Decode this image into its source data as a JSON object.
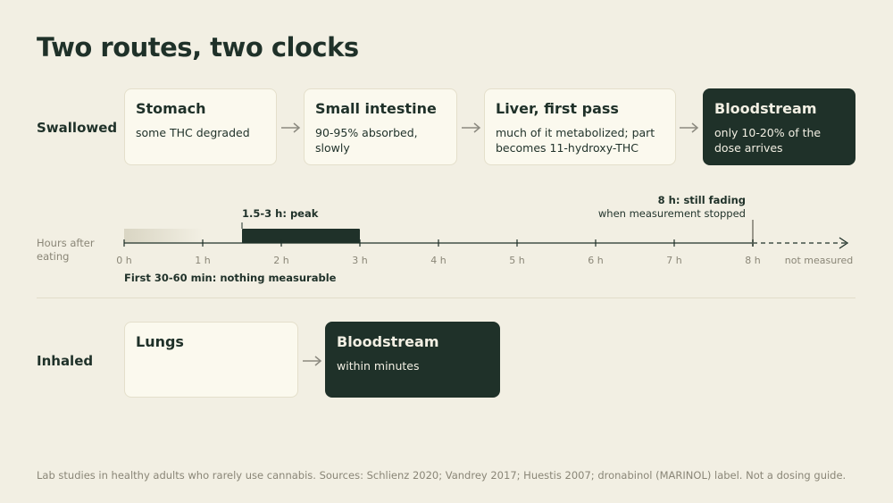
{
  "title": "Two routes, two clocks",
  "colors": {
    "background": "#f2efe3",
    "card": "#fbf9ee",
    "card_border": "#e4dfcb",
    "dark": "#1f3129",
    "muted": "#8a8677",
    "arrow": "#8c8a80"
  },
  "swallowed": {
    "label": "Swallowed",
    "steps": [
      {
        "title": "Stomach",
        "text": "some THC degraded",
        "dark": false
      },
      {
        "title": "Small intestine",
        "text": "90-95% absorbed, slowly",
        "dark": false
      },
      {
        "title": "Liver, first pass",
        "text": "much of it metabolized; part becomes 11-hydroxy-THC",
        "dark": false
      },
      {
        "title": "Bloodstream",
        "text": "only 10-20% of the dose arrives",
        "dark": true
      }
    ]
  },
  "timeline": {
    "axis_label": "Hours after eating",
    "ticks": [
      "0 h",
      "1 h",
      "2 h",
      "3 h",
      "4 h",
      "5 h",
      "6 h",
      "7 h",
      "8 h"
    ],
    "tick_values": [
      0,
      1,
      2,
      3,
      4,
      5,
      6,
      7,
      8
    ],
    "not_measured_label": "not measured",
    "onset": {
      "start": 0,
      "end": 1,
      "label": "First 30-60 min: nothing measurable"
    },
    "peak": {
      "start": 1.5,
      "end": 3,
      "label": "1.5-3 h: peak"
    },
    "stop": {
      "at": 8,
      "label_line1": "8 h: still fading",
      "label_line2": "when measurement stopped"
    }
  },
  "inhaled": {
    "label": "Inhaled",
    "steps": [
      {
        "title": "Lungs",
        "text": "",
        "dark": false
      },
      {
        "title": "Bloodstream",
        "text": "within minutes",
        "dark": true
      }
    ]
  },
  "footnote": "Lab studies in healthy adults who rarely use cannabis. Sources: Schlienz 2020; Vandrey 2017; Huestis 2007; dronabinol (MARINOL) label. Not a dosing guide."
}
